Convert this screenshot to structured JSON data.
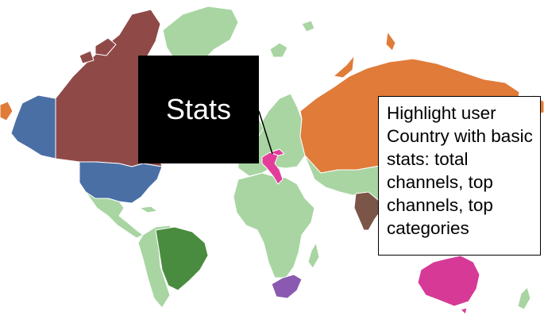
{
  "colors": {
    "default_country": "#a8d5a2",
    "canada": "#8f4a48",
    "usa_alaska": "#4a6fa5",
    "russia": "#e07b39",
    "brazil": "#4a8c3f",
    "india": "#7a5548",
    "australia": "#d63a96",
    "south_africa": "#8a5ab0",
    "highlight": "#e33d9a",
    "border": "#ffffff"
  },
  "callouts": {
    "stats_label": "Stats",
    "note_text": "Highlight user Country with basic stats: total channels, top channels, top categories"
  },
  "icons": {
    "map": "world-map"
  }
}
